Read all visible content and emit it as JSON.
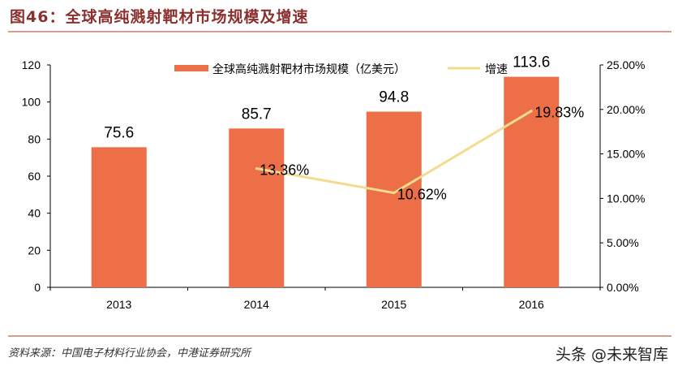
{
  "title": "图46：全球高纯溅射靶材市场规模及增速",
  "source": "资料来源：中国电子材料行业协会，中港证券研究所",
  "watermark": "头条 @未来智库",
  "chart_data": {
    "type": "bar+line",
    "categories": [
      "2013",
      "2014",
      "2015",
      "2016"
    ],
    "series": [
      {
        "name": "全球高纯溅射靶材市场规模（亿美元）",
        "type": "bar",
        "axis": "left",
        "values": [
          75.6,
          85.7,
          94.8,
          113.6
        ],
        "labels": [
          "75.6",
          "85.7",
          "94.8",
          "113.6"
        ],
        "color": "#ed6f47"
      },
      {
        "name": "增速",
        "type": "line",
        "axis": "right",
        "values": [
          null,
          13.36,
          10.62,
          19.83
        ],
        "labels": [
          "",
          "13.36%",
          "10.62%",
          "19.83%"
        ],
        "color": "#f3dc8e"
      }
    ],
    "left_axis": {
      "range": [
        0,
        120
      ],
      "ticks": [
        "0",
        "20",
        "40",
        "60",
        "80",
        "100",
        "120"
      ]
    },
    "right_axis": {
      "range": [
        0,
        25
      ],
      "ticks": [
        "0.00%",
        "5.00%",
        "10.00%",
        "15.00%",
        "20.00%",
        "25.00%"
      ]
    },
    "legend": "top",
    "grid": false
  }
}
